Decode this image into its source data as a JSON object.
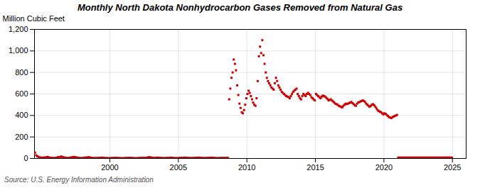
{
  "chart_data": {
    "type": "scatter",
    "title": "Monthly North Dakota Nonhydrocarbon Gases Removed from Natural Gas",
    "ylabel": "Million Cubic Feet",
    "source": "Source: U.S. Energy Information Administration",
    "color": "#cc0000",
    "marker": "square",
    "grid": true,
    "xlim": [
      1994.5,
      2026
    ],
    "ylim": [
      0,
      1200
    ],
    "xticks": [
      2000,
      2005,
      2010,
      2015,
      2020,
      2025
    ],
    "yticks": [
      0,
      200,
      400,
      600,
      800,
      {
        "value": 1000,
        "label": "1,000"
      },
      {
        "value": 1200,
        "label": "1,200"
      }
    ],
    "x": [
      1994.5416666666667,
      1994.625,
      1994.7083333333333,
      1994.7916666666667,
      1994.875,
      1994.9583333333333,
      1995.0416666666667,
      1995.125,
      1995.2083333333333,
      1995.2916666666667,
      1995.375,
      1995.4583333333333,
      1995.5416666666667,
      1995.625,
      1995.7083333333333,
      1995.7916666666667,
      1995.875,
      1995.9583333333333,
      1996.0416666666667,
      1996.125,
      1996.2083333333333,
      1996.2916666666667,
      1996.375,
      1996.4583333333333,
      1996.5416666666667,
      1996.625,
      1996.7083333333333,
      1996.7916666666667,
      1996.875,
      1996.9583333333333,
      1997.0416666666667,
      1997.125,
      1997.2083333333333,
      1997.2916666666667,
      1997.375,
      1997.4583333333333,
      1997.5416666666667,
      1997.625,
      1997.7083333333333,
      1997.7916666666667,
      1997.875,
      1997.9583333333333,
      1998.0416666666667,
      1998.125,
      1998.2083333333333,
      1998.2916666666667,
      1998.375,
      1998.4583333333333,
      1998.5416666666667,
      1998.625,
      1998.7083333333333,
      1998.7916666666667,
      1998.875,
      1998.9583333333333,
      1999.0416666666667,
      1999.125,
      1999.2083333333333,
      1999.2916666666667,
      1999.375,
      1999.4583333333333,
      1999.5416666666667,
      1999.625,
      1999.7083333333333,
      1999.7916666666667,
      1999.875,
      1999.9583333333333,
      2000.0416666666667,
      2000.125,
      2000.2083333333333,
      2000.2916666666667,
      2000.375,
      2000.4583333333333,
      2000.5416666666667,
      2000.625,
      2000.7083333333333,
      2000.7916666666667,
      2000.875,
      2000.9583333333333,
      2001.0416666666667,
      2001.125,
      2001.2083333333333,
      2001.2916666666667,
      2001.375,
      2001.4583333333333,
      2001.5416666666667,
      2001.625,
      2001.7083333333333,
      2001.7916666666667,
      2001.875,
      2001.9583333333333,
      2002.0416666666667,
      2002.125,
      2002.2083333333333,
      2002.2916666666667,
      2002.375,
      2002.4583333333333,
      2002.5416666666667,
      2002.625,
      2002.7083333333333,
      2002.7916666666667,
      2002.875,
      2002.9583333333333,
      2003.0416666666667,
      2003.125,
      2003.2083333333333,
      2003.2916666666667,
      2003.375,
      2003.4583333333333,
      2003.5416666666667,
      2003.625,
      2003.7083333333333,
      2003.7916666666667,
      2003.875,
      2003.9583333333333,
      2004.0416666666667,
      2004.125,
      2004.2083333333333,
      2004.2916666666667,
      2004.375,
      2004.4583333333333,
      2004.5416666666667,
      2004.625,
      2004.7083333333333,
      2004.7916666666667,
      2004.875,
      2004.9583333333333,
      2005.0416666666667,
      2005.125,
      2005.2083333333333,
      2005.2916666666667,
      2005.375,
      2005.4583333333333,
      2005.5416666666667,
      2005.625,
      2005.7083333333333,
      2005.7916666666667,
      2005.875,
      2005.9583333333333,
      2006.0416666666667,
      2006.125,
      2006.2083333333333,
      2006.2916666666667,
      2006.375,
      2006.4583333333333,
      2006.5416666666667,
      2006.625,
      2006.7083333333333,
      2006.7916666666667,
      2006.875,
      2006.9583333333333,
      2007.0416666666667,
      2007.125,
      2007.2083333333333,
      2007.2916666666667,
      2007.375,
      2007.4583333333333,
      2007.5416666666667,
      2007.625,
      2007.7083333333333,
      2007.7916666666667,
      2007.875,
      2007.9583333333333,
      2008.0416666666667,
      2008.125,
      2008.2083333333333,
      2008.2916666666667,
      2008.375,
      2008.4583333333333,
      2008.5416666666667,
      2008.625,
      2008.7083333333333,
      2008.7916666666667,
      2008.875,
      2008.9583333333333,
      2009.0416666666667,
      2009.125,
      2009.2083333333333,
      2009.2916666666667,
      2009.375,
      2009.4583333333333,
      2009.5416666666667,
      2009.625,
      2009.7083333333333,
      2009.7916666666667,
      2009.875,
      2009.9583333333333,
      2010.0416666666667,
      2010.125,
      2010.2083333333333,
      2010.2916666666667,
      2010.375,
      2010.4583333333333,
      2010.5416666666667,
      2010.625,
      2010.7083333333333,
      2010.7916666666667,
      2010.875,
      2010.9583333333333,
      2011.0416666666667,
      2011.125,
      2011.2083333333333,
      2011.2916666666667,
      2011.375,
      2011.4583333333333,
      2011.5416666666667,
      2011.625,
      2011.7083333333333,
      2011.7916666666667,
      2011.875,
      2011.9583333333333,
      2012.0416666666667,
      2012.125,
      2012.2083333333333,
      2012.2916666666667,
      2012.375,
      2012.4583333333333,
      2012.5416666666667,
      2012.625,
      2012.7083333333333,
      2012.7916666666667,
      2012.875,
      2012.9583333333333,
      2013.0416666666667,
      2013.125,
      2013.2083333333333,
      2013.2916666666667,
      2013.375,
      2013.4583333333333,
      2013.5416666666667,
      2013.625,
      2013.7083333333333,
      2013.7916666666667,
      2013.875,
      2013.9583333333333,
      2014.0416666666667,
      2014.125,
      2014.2083333333333,
      2014.2916666666667,
      2014.375,
      2014.4583333333333,
      2014.5416666666667,
      2014.625,
      2014.7083333333333,
      2014.7916666666667,
      2014.875,
      2014.9583333333333,
      2015.0416666666667,
      2015.125,
      2015.2083333333333,
      2015.2916666666667,
      2015.375,
      2015.4583333333333,
      2015.5416666666667,
      2015.625,
      2015.7083333333333,
      2015.7916666666667,
      2015.875,
      2015.9583333333333,
      2016.0416666666667,
      2016.125,
      2016.2083333333333,
      2016.2916666666667,
      2016.375,
      2016.4583333333333,
      2016.5416666666667,
      2016.625,
      2016.7083333333333,
      2016.7916666666667,
      2016.875,
      2016.9583333333333,
      2017.0416666666667,
      2017.125,
      2017.2083333333333,
      2017.2916666666667,
      2017.375,
      2017.4583333333333,
      2017.5416666666667,
      2017.625,
      2017.7083333333333,
      2017.7916666666667,
      2017.875,
      2017.9583333333333,
      2018.0416666666667,
      2018.125,
      2018.2083333333333,
      2018.2916666666667,
      2018.375,
      2018.4583333333333,
      2018.5416666666667,
      2018.625,
      2018.7083333333333,
      2018.7916666666667,
      2018.875,
      2018.9583333333333,
      2019.0416666666667,
      2019.125,
      2019.2083333333333,
      2019.2916666666667,
      2019.375,
      2019.4583333333333,
      2019.5416666666667,
      2019.625,
      2019.7083333333333,
      2019.7916666666667,
      2019.875,
      2019.9583333333333,
      2020.0416666666667,
      2020.125,
      2020.2083333333333,
      2020.2916666666667,
      2020.375,
      2020.4583333333333,
      2020.5416666666667,
      2020.625,
      2020.7083333333333,
      2020.7916666666667,
      2020.875,
      2020.9583333333333,
      2021.0416666666667,
      2021.125,
      2021.2083333333333,
      2021.2916666666667,
      2021.375,
      2021.4583333333333,
      2021.5416666666667,
      2021.625,
      2021.7083333333333,
      2021.7916666666667,
      2021.875,
      2021.9583333333333,
      2022.0416666666667,
      2022.125,
      2022.2083333333333,
      2022.2916666666667,
      2022.375,
      2022.4583333333333,
      2022.5416666666667,
      2022.625,
      2022.7083333333333,
      2022.7916666666667,
      2022.875,
      2022.9583333333333,
      2023.0416666666667,
      2023.125,
      2023.2083333333333,
      2023.2916666666667,
      2023.375,
      2023.4583333333333,
      2023.5416666666667,
      2023.625,
      2023.7083333333333,
      2023.7916666666667,
      2023.875,
      2023.9583333333333,
      2024.0416666666667,
      2024.125,
      2024.2083333333333,
      2024.2916666666667,
      2024.375,
      2024.4583333333333,
      2024.5416666666667,
      2024.625,
      2024.7083333333333,
      2024.7916666666667,
      2024.875,
      2024.9583333333333
    ],
    "values": [
      55,
      30,
      20,
      15,
      10,
      8,
      8,
      6,
      10,
      8,
      12,
      15,
      10,
      8,
      6,
      5,
      4,
      3,
      5,
      8,
      12,
      10,
      15,
      18,
      14,
      10,
      8,
      6,
      5,
      4,
      6,
      8,
      10,
      12,
      15,
      12,
      10,
      8,
      6,
      5,
      4,
      3,
      5,
      7,
      9,
      8,
      10,
      12,
      9,
      7,
      5,
      4,
      3,
      3,
      4,
      5,
      6,
      5,
      7,
      8,
      6,
      5,
      4,
      3,
      3,
      2,
      3,
      4,
      5,
      4,
      6,
      7,
      5,
      4,
      3,
      3,
      2,
      2,
      3,
      4,
      5,
      4,
      6,
      7,
      5,
      4,
      3,
      3,
      2,
      2,
      3,
      4,
      5,
      4,
      6,
      7,
      5,
      4,
      8,
      10,
      12,
      10,
      8,
      6,
      5,
      4,
      6,
      8,
      7,
      6,
      5,
      4,
      3,
      3,
      4,
      5,
      6,
      5,
      7,
      8,
      6,
      5,
      4,
      3,
      3,
      3,
      4,
      5,
      6,
      5,
      7,
      8,
      7,
      6,
      5,
      4,
      4,
      3,
      4,
      5,
      6,
      5,
      7,
      8,
      7,
      6,
      5,
      4,
      4,
      3,
      4,
      5,
      6,
      5,
      7,
      8,
      6,
      5,
      4,
      3,
      3,
      3,
      4,
      5,
      5,
      5,
      5,
      5,
      5,
      5,
      550,
      650,
      750,
      800,
      920,
      880,
      820,
      680,
      590,
      510,
      470,
      430,
      420,
      450,
      500,
      560,
      600,
      630,
      610,
      580,
      550,
      520,
      500,
      490,
      560,
      720,
      950,
      1040,
      980,
      1100,
      960,
      880,
      800,
      750,
      720,
      700,
      680,
      660,
      650,
      640,
      700,
      750,
      720,
      680,
      660,
      640,
      620,
      610,
      600,
      590,
      580,
      575,
      570,
      560,
      580,
      600,
      620,
      630,
      640,
      650,
      600,
      580,
      560,
      550,
      580,
      600,
      590,
      580,
      600,
      610,
      600,
      590,
      570,
      560,
      550,
      540,
      600,
      590,
      580,
      570,
      560,
      575,
      585,
      580,
      575,
      565,
      555,
      540,
      545,
      550,
      540,
      530,
      520,
      510,
      505,
      500,
      490,
      485,
      480,
      475,
      490,
      500,
      510,
      505,
      510,
      515,
      520,
      525,
      515,
      505,
      495,
      490,
      510,
      520,
      525,
      530,
      535,
      540,
      535,
      525,
      510,
      500,
      490,
      480,
      490,
      500,
      505,
      495,
      480,
      465,
      450,
      440,
      435,
      430,
      420,
      410,
      420,
      415,
      405,
      395,
      385,
      380,
      375,
      385,
      390,
      395,
      400,
      405,
      8,
      8,
      8,
      8,
      8,
      8,
      8,
      8,
      8,
      8,
      8,
      8,
      8,
      8,
      8,
      8,
      8,
      8,
      8,
      8,
      8,
      8,
      8,
      8,
      8,
      8,
      8,
      8,
      8,
      8,
      8,
      8,
      8,
      8,
      8,
      8,
      8,
      8,
      8,
      8,
      8,
      8,
      8,
      8,
      8,
      8,
      8,
      8
    ]
  }
}
